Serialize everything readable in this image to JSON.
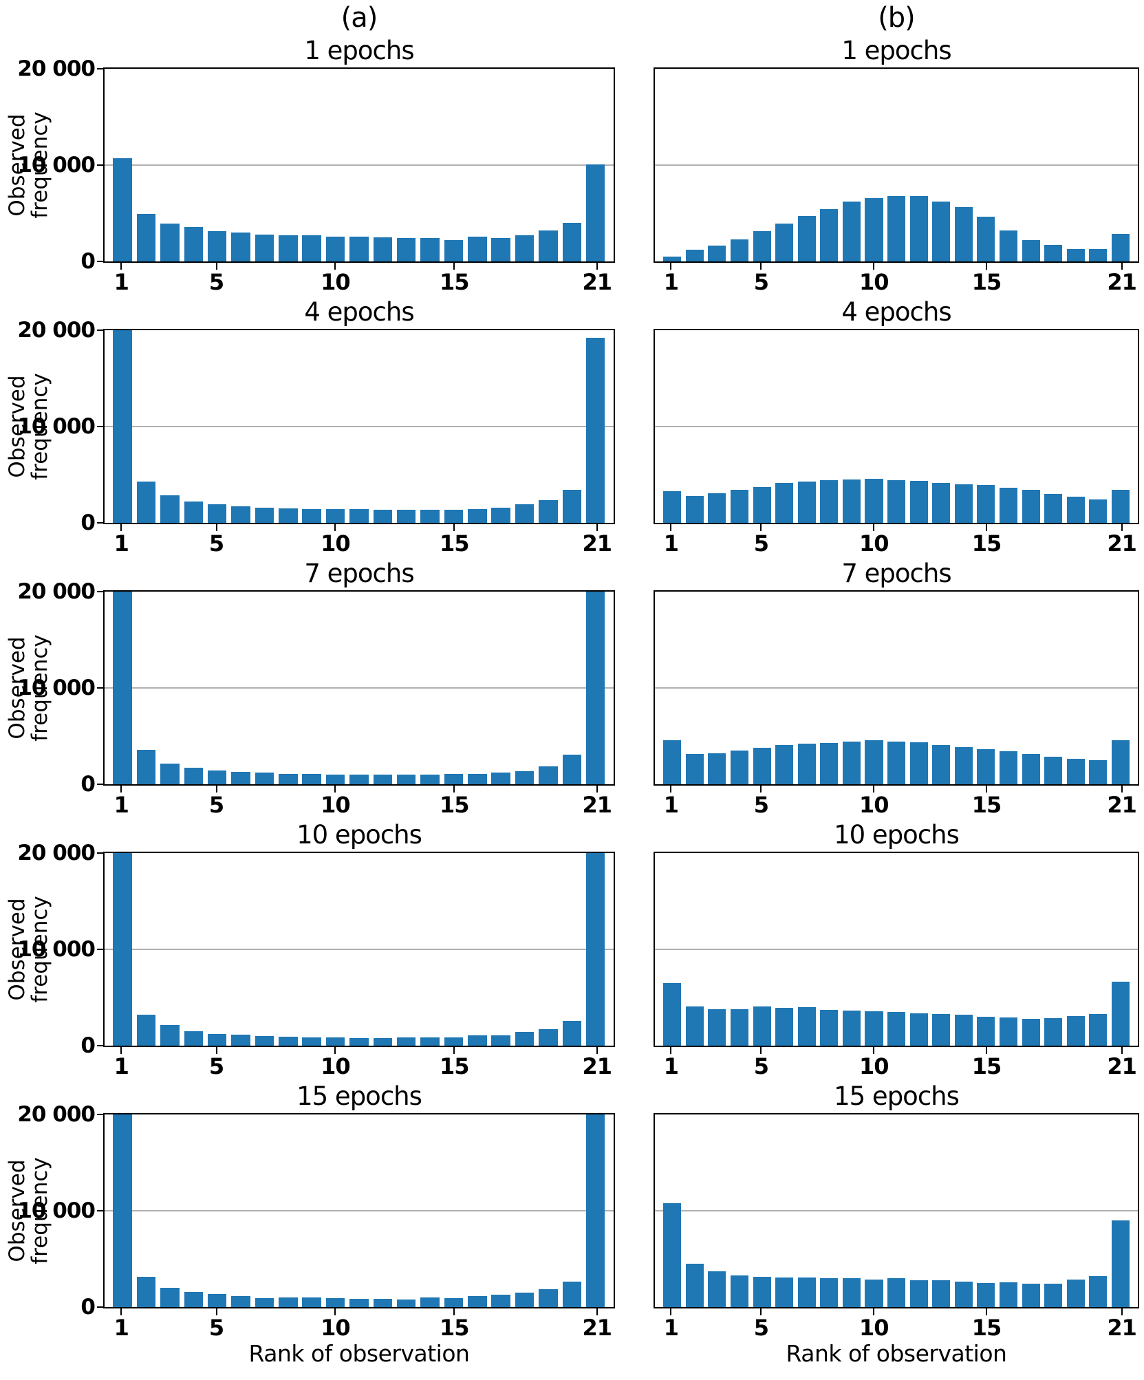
{
  "figure": {
    "column_headers": [
      {
        "label": "(a)"
      },
      {
        "label": "(b)"
      }
    ],
    "ylabel_lines": [
      "Observed",
      "frequency"
    ],
    "xlabel": "Rank of observation",
    "ytick_labels": [
      "20 000",
      "10 000",
      "0"
    ],
    "xtick_values": [
      1,
      5,
      10,
      15,
      21
    ],
    "colors": {
      "bar": "#1f77b4",
      "grid": "#b0b0b0",
      "spine": "#000000",
      "background": "#ffffff"
    }
  },
  "chart_data": [
    {
      "type": "bar",
      "column": "(a)",
      "row": 1,
      "title": "1 epochs",
      "x": [
        1,
        2,
        3,
        4,
        5,
        6,
        7,
        8,
        9,
        10,
        11,
        12,
        13,
        14,
        15,
        16,
        17,
        18,
        19,
        20,
        21
      ],
      "values": [
        10700,
        4900,
        3900,
        3600,
        3150,
        3000,
        2800,
        2700,
        2750,
        2600,
        2550,
        2500,
        2450,
        2450,
        2250,
        2550,
        2450,
        2700,
        3200,
        4000,
        10050
      ],
      "ylim": [
        0,
        20000
      ],
      "yticks": [
        0,
        10000,
        20000
      ],
      "xticks": [
        1,
        5,
        10,
        15,
        21
      ],
      "ylabel": "Observed frequency",
      "grid": "horizontal-10000"
    },
    {
      "type": "bar",
      "column": "(b)",
      "row": 1,
      "title": "1 epochs",
      "x": [
        1,
        2,
        3,
        4,
        5,
        6,
        7,
        8,
        9,
        10,
        11,
        12,
        13,
        14,
        15,
        16,
        17,
        18,
        19,
        20,
        21
      ],
      "values": [
        500,
        1200,
        1650,
        2300,
        3150,
        3950,
        4700,
        5450,
        6200,
        6550,
        6800,
        6800,
        6200,
        5650,
        4650,
        3250,
        2250,
        1700,
        1300,
        1300,
        2850
      ],
      "ylim": [
        0,
        20000
      ],
      "yticks": [
        0,
        10000,
        20000
      ],
      "xticks": [
        1,
        5,
        10,
        15,
        21
      ],
      "grid": "horizontal-10000"
    },
    {
      "type": "bar",
      "column": "(a)",
      "row": 2,
      "title": "4 epochs",
      "x": [
        1,
        2,
        3,
        4,
        5,
        6,
        7,
        8,
        9,
        10,
        11,
        12,
        13,
        14,
        15,
        16,
        17,
        18,
        19,
        20,
        21
      ],
      "values": [
        20000,
        4300,
        2850,
        2250,
        1950,
        1700,
        1600,
        1500,
        1450,
        1400,
        1400,
        1350,
        1330,
        1330,
        1350,
        1450,
        1600,
        1900,
        2350,
        3450,
        19200
      ],
      "ylim": [
        0,
        20000
      ],
      "yticks": [
        0,
        10000,
        20000
      ],
      "xticks": [
        1,
        5,
        10,
        15,
        21
      ],
      "ylabel": "Observed frequency",
      "grid": "horizontal-10000"
    },
    {
      "type": "bar",
      "column": "(b)",
      "row": 2,
      "title": "4 epochs",
      "x": [
        1,
        2,
        3,
        4,
        5,
        6,
        7,
        8,
        9,
        10,
        11,
        12,
        13,
        14,
        15,
        16,
        17,
        18,
        19,
        20,
        21
      ],
      "values": [
        3280,
        2790,
        3060,
        3460,
        3710,
        4130,
        4280,
        4450,
        4530,
        4580,
        4400,
        4330,
        4150,
        4030,
        3900,
        3610,
        3410,
        2990,
        2710,
        2410,
        3460
      ],
      "ylim": [
        0,
        20000
      ],
      "yticks": [
        0,
        10000,
        20000
      ],
      "xticks": [
        1,
        5,
        10,
        15,
        21
      ],
      "grid": "horizontal-10000"
    },
    {
      "type": "bar",
      "column": "(a)",
      "row": 3,
      "title": "7 epochs",
      "x": [
        1,
        2,
        3,
        4,
        5,
        6,
        7,
        8,
        9,
        10,
        11,
        12,
        13,
        14,
        15,
        16,
        17,
        18,
        19,
        20,
        21
      ],
      "values": [
        20000,
        3550,
        2150,
        1700,
        1400,
        1270,
        1190,
        1050,
        1040,
        980,
        1000,
        970,
        970,
        1000,
        1040,
        1080,
        1190,
        1370,
        1890,
        3050,
        20000
      ],
      "ylim": [
        0,
        20000
      ],
      "yticks": [
        0,
        10000,
        20000
      ],
      "xticks": [
        1,
        5,
        10,
        15,
        21
      ],
      "ylabel": "Observed frequency",
      "grid": "horizontal-10000"
    },
    {
      "type": "bar",
      "column": "(b)",
      "row": 3,
      "title": "7 epochs",
      "x": [
        1,
        2,
        3,
        4,
        5,
        6,
        7,
        8,
        9,
        10,
        11,
        12,
        13,
        14,
        15,
        16,
        17,
        18,
        19,
        20,
        21
      ],
      "values": [
        4600,
        3130,
        3230,
        3530,
        3780,
        4060,
        4240,
        4290,
        4440,
        4590,
        4410,
        4340,
        4040,
        3860,
        3610,
        3410,
        3130,
        2830,
        2660,
        2510,
        4540
      ],
      "ylim": [
        0,
        20000
      ],
      "yticks": [
        0,
        10000,
        20000
      ],
      "xticks": [
        1,
        5,
        10,
        15,
        21
      ],
      "grid": "horizontal-10000"
    },
    {
      "type": "bar",
      "column": "(a)",
      "row": 4,
      "title": "10 epochs",
      "x": [
        1,
        2,
        3,
        4,
        5,
        6,
        7,
        8,
        9,
        10,
        11,
        12,
        13,
        14,
        15,
        16,
        17,
        18,
        19,
        20,
        21
      ],
      "values": [
        20000,
        3250,
        2150,
        1500,
        1250,
        1150,
        1000,
        920,
        880,
        880,
        800,
        780,
        870,
        880,
        880,
        1050,
        1100,
        1450,
        1750,
        2600,
        20000
      ],
      "ylim": [
        0,
        20000
      ],
      "yticks": [
        0,
        10000,
        20000
      ],
      "xticks": [
        1,
        5,
        10,
        15,
        21
      ],
      "ylabel": "Observed frequency",
      "grid": "horizontal-10000"
    },
    {
      "type": "bar",
      "column": "(b)",
      "row": 4,
      "title": "10 epochs",
      "x": [
        1,
        2,
        3,
        4,
        5,
        6,
        7,
        8,
        9,
        10,
        11,
        12,
        13,
        14,
        15,
        16,
        17,
        18,
        19,
        20,
        21
      ],
      "values": [
        6500,
        4050,
        3820,
        3800,
        4050,
        3950,
        3970,
        3750,
        3630,
        3580,
        3500,
        3360,
        3260,
        3210,
        3010,
        2940,
        2790,
        2890,
        3040,
        3310,
        6650
      ],
      "ylim": [
        0,
        20000
      ],
      "yticks": [
        0,
        10000,
        20000
      ],
      "xticks": [
        1,
        5,
        10,
        15,
        21
      ],
      "grid": "horizontal-10000"
    },
    {
      "type": "bar",
      "column": "(a)",
      "row": 5,
      "title": "15 epochs",
      "x": [
        1,
        2,
        3,
        4,
        5,
        6,
        7,
        8,
        9,
        10,
        11,
        12,
        13,
        14,
        15,
        16,
        17,
        18,
        19,
        20,
        21
      ],
      "values": [
        20000,
        3150,
        2000,
        1570,
        1340,
        1140,
        950,
        970,
        970,
        900,
        870,
        870,
        770,
        1020,
        950,
        1140,
        1270,
        1490,
        1890,
        2630,
        20000
      ],
      "ylim": [
        0,
        20000
      ],
      "yticks": [
        0,
        10000,
        20000
      ],
      "xticks": [
        1,
        5,
        10,
        15,
        21
      ],
      "ylabel": "Observed frequency",
      "xlabel": "Rank of observation",
      "grid": "horizontal-10000"
    },
    {
      "type": "bar",
      "column": "(b)",
      "row": 5,
      "title": "15 epochs",
      "x": [
        1,
        2,
        3,
        4,
        5,
        6,
        7,
        8,
        9,
        10,
        11,
        12,
        13,
        14,
        15,
        16,
        17,
        18,
        19,
        20,
        21
      ],
      "values": [
        10800,
        4500,
        3700,
        3300,
        3120,
        3070,
        3070,
        2970,
        2990,
        2860,
        3010,
        2770,
        2770,
        2640,
        2520,
        2540,
        2410,
        2460,
        2840,
        3200,
        9000
      ],
      "ylim": [
        0,
        20000
      ],
      "yticks": [
        0,
        10000,
        20000
      ],
      "xticks": [
        1,
        5,
        10,
        15,
        21
      ],
      "xlabel": "Rank of observation",
      "grid": "horizontal-10000"
    }
  ]
}
